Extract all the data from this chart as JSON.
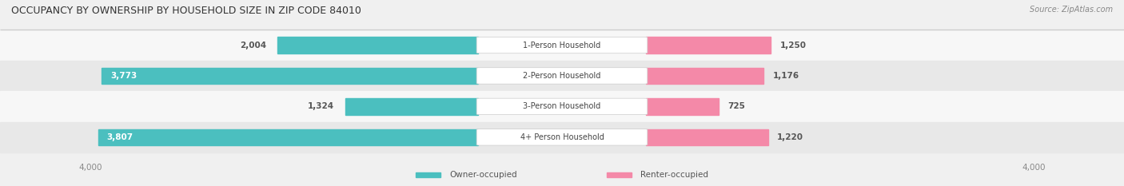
{
  "title": "OCCUPANCY BY OWNERSHIP BY HOUSEHOLD SIZE IN ZIP CODE 84010",
  "source": "Source: ZipAtlas.com",
  "categories": [
    "1-Person Household",
    "2-Person Household",
    "3-Person Household",
    "4+ Person Household"
  ],
  "owner_values": [
    2004,
    3773,
    1324,
    3807
  ],
  "renter_values": [
    1250,
    1176,
    725,
    1220
  ],
  "max_scale": 4000,
  "owner_color": "#4BBFBF",
  "renter_color": "#F489A8",
  "bg_color": "#f0f0f0",
  "label_color": "#555555",
  "title_color": "#333333",
  "axis_label_color": "#888888"
}
